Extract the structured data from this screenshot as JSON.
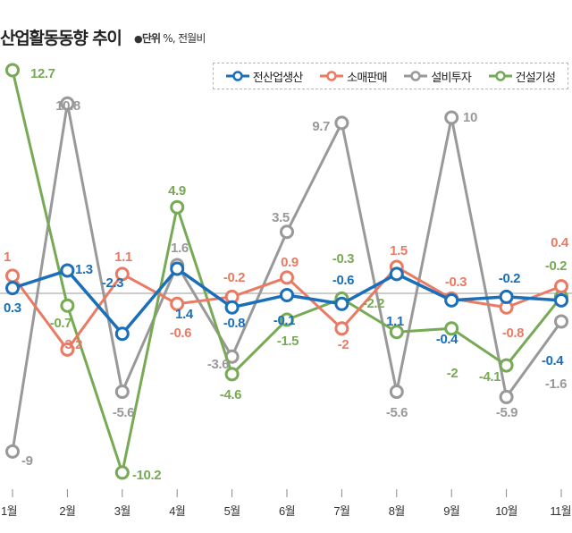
{
  "header": {
    "title": "산업활동동향 추이",
    "unit_bullet": "●",
    "unit_label": "단위",
    "unit_rest": " %, 전월비"
  },
  "chart_data": {
    "type": "line",
    "title": "산업활동동향 추이",
    "subtitle": "단위 %, 전월비",
    "xlabel": "",
    "ylabel": "",
    "x": [
      "1월",
      "2월",
      "3월",
      "4월",
      "5월",
      "6월",
      "7월",
      "8월",
      "9월",
      "10월",
      "11월"
    ],
    "ylim": [
      -12.7,
      14.0
    ],
    "grid": false,
    "zero_line": true,
    "legend_position": "top-right",
    "series": [
      {
        "name": "전산업생산",
        "color": "#1a6fb8",
        "values": [
          0.3,
          1.3,
          -2.3,
          1.4,
          -0.8,
          -0.1,
          -0.6,
          1.1,
          -0.4,
          -0.2,
          -0.4
        ]
      },
      {
        "name": "소매판매",
        "color": "#ea7a63",
        "values": [
          1,
          -3.2,
          1.1,
          -0.6,
          -0.2,
          0.9,
          -2,
          1.5,
          -0.3,
          -0.8,
          0.4
        ]
      },
      {
        "name": "설비투자",
        "color": "#999999",
        "values": [
          -9,
          10.8,
          -5.6,
          1.6,
          -3.6,
          3.5,
          9.7,
          -5.6,
          10,
          -5.9,
          -1.6
        ]
      },
      {
        "name": "건설기성",
        "color": "#77aa55",
        "values": [
          12.7,
          -0.7,
          -10.2,
          4.9,
          -4.6,
          -1.5,
          -0.3,
          -2.2,
          -2,
          -4.1,
          -0.2
        ]
      }
    ]
  }
}
